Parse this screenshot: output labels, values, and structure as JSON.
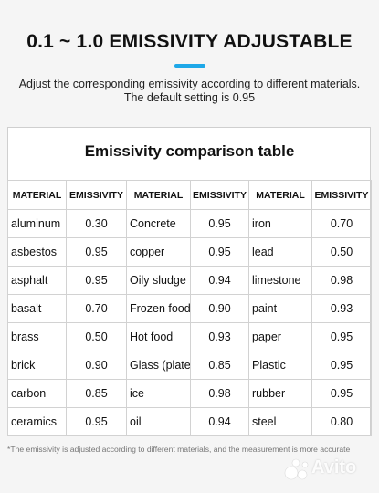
{
  "header": {
    "title": "0.1 ~ 1.0 EMISSIVITY ADJUSTABLE",
    "subtitle_line1": "Adjust the corresponding emissivity according to different materials.",
    "subtitle_line2": "The default setting is 0.95",
    "accent_color": "#1ea8e8"
  },
  "table": {
    "title": "Emissivity comparison table",
    "headers": [
      "MATERIAL",
      "EMISSIVITY",
      "MATERIAL",
      "EMISSIVITY",
      "MATERIAL",
      "EMISSIVITY"
    ],
    "rows": [
      [
        "aluminum",
        "0.30",
        "Concrete",
        "0.95",
        "iron",
        "0.70"
      ],
      [
        "asbestos",
        "0.95",
        "copper",
        "0.95",
        "lead",
        "0.50"
      ],
      [
        "asphalt",
        "0.95",
        "Oily sludge",
        "0.94",
        "limestone",
        "0.98"
      ],
      [
        "basalt",
        "0.70",
        "Frozen food",
        "0.90",
        "paint",
        "0.93"
      ],
      [
        "brass",
        "0.50",
        "Hot food",
        "0.93",
        "paper",
        "0.95"
      ],
      [
        "brick",
        "0.90",
        "Glass (plate)",
        "0.85",
        "Plastic",
        "0.95"
      ],
      [
        "carbon",
        "0.85",
        "ice",
        "0.98",
        "rubber",
        "0.95"
      ],
      [
        "ceramics",
        "0.95",
        "oil",
        "0.94",
        "steel",
        "0.80"
      ]
    ]
  },
  "footnote": "*The emissivity is adjusted according to different materials, and the measurement is more accurate",
  "watermark": {
    "text": "Avito",
    "icon": "avito-logo-icon"
  }
}
